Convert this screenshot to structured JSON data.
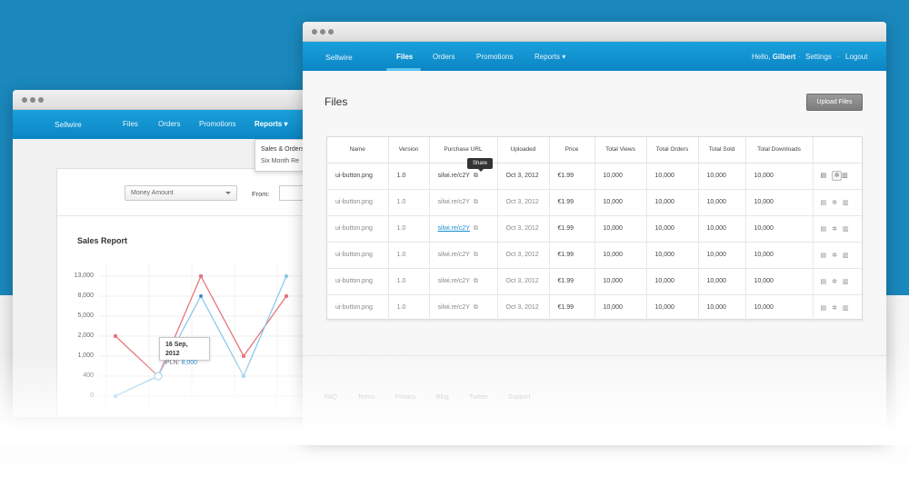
{
  "back_window": {
    "brand": "Sellwire",
    "nav": [
      "Files",
      "Orders",
      "Promotions",
      "Reports"
    ],
    "dropdown_items": [
      "Sales & Orders",
      "Six Month Re"
    ],
    "filter_select": "Money Amount",
    "from_label": "From:",
    "section_title": "Sales Report",
    "chart_data": {
      "type": "line",
      "title": "Sales Report",
      "y_ticks": [
        "13,000",
        "8,000",
        "5,000",
        "2,000",
        "1,000",
        "400",
        "0"
      ],
      "series": [
        {
          "color": "#e8747c",
          "values": [
            2000,
            400,
            13000,
            1000,
            8000
          ]
        },
        {
          "color": "#8fc7ea",
          "values": [
            0,
            400,
            8000,
            400,
            13000
          ]
        }
      ],
      "tooltip": {
        "date": "16 Sep, 2012",
        "label": "PLN:",
        "value": "8,000"
      }
    }
  },
  "front_window": {
    "brand": "Sellwire",
    "nav": [
      "Files",
      "Orders",
      "Promotions",
      "Reports"
    ],
    "user": {
      "greeting": "Hello,",
      "name": "Gilbert",
      "settings": "Settings",
      "logout": "Logout"
    },
    "page_title": "Files",
    "upload_button": "Upload Files",
    "share_tooltip": "Share",
    "table": {
      "headers": [
        "Name",
        "Version",
        "Purchase URL",
        "Uploaded",
        "Price",
        "Total Views",
        "Total Orders",
        "Total Sold",
        "Total Downloads",
        ""
      ],
      "rows": [
        [
          "ui-button.png",
          "1.0",
          "silwi.re/c2Y",
          "Oct 3, 2012",
          "€1.99",
          "10,000",
          "10,000",
          "10,000",
          "10,000"
        ],
        [
          "ui-button.png",
          "1.0",
          "silwi.re/c2Y",
          "Oct 3, 2012",
          "€1.99",
          "10,000",
          "10,000",
          "10,000",
          "10,000"
        ],
        [
          "ui-button.png",
          "1.0",
          "silwi.re/c2Y",
          "Oct 3, 2012",
          "€1.99",
          "10,000",
          "10,000",
          "10,000",
          "10,000"
        ],
        [
          "ui-button.png",
          "1.0",
          "silwi.re/c2Y",
          "Oct 3, 2012",
          "€1.99",
          "10,000",
          "10,000",
          "10,000",
          "10,000"
        ],
        [
          "ui-button.png",
          "1.0",
          "silwi.re/c2Y",
          "Oct 3, 2012",
          "€1.99",
          "10,000",
          "10,000",
          "10,000",
          "10,000"
        ],
        [
          "ui-button.png",
          "1.0",
          "silwi.re/c2Y",
          "Oct 3, 2012",
          "€1.99",
          "10,000",
          "10,000",
          "10,000",
          "10,000"
        ]
      ]
    },
    "footer_links": [
      "FAQ",
      "Terms",
      "Privacy",
      "Blog",
      "Twitter",
      "Support"
    ]
  },
  "icons": [
    "file-icon",
    "gear-icon",
    "trash-icon",
    "external-link-icon"
  ],
  "colors": {
    "brand_blue": "#1a88bd",
    "nav_blue": "#0b86c4",
    "link": "#1a8bd0"
  }
}
